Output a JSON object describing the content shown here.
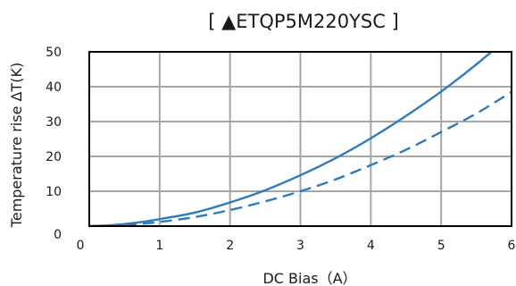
{
  "chart_data": {
    "type": "line",
    "title": "[ ▲ETQP5M220YSC ]",
    "xlabel": "DC Bias（A）",
    "ylabel": "Temperature rise ΔT(K)",
    "xlim": [
      0,
      6
    ],
    "ylim": [
      0,
      50
    ],
    "x_ticks": [
      "0",
      "1",
      "2",
      "3",
      "4",
      "5",
      "6"
    ],
    "y_ticks": [
      "0",
      "10",
      "20",
      "30",
      "40",
      "50"
    ],
    "grid": true,
    "legend": "none",
    "series": [
      {
        "style": "solid",
        "color": "#2d7bbf",
        "x": [
          0,
          0.25,
          0.5,
          0.75,
          1,
          1.5,
          2,
          2.5,
          3,
          3.5,
          4,
          4.5,
          5,
          5.5,
          6
        ],
        "y": [
          0,
          0.2,
          0.6,
          1.2,
          2,
          3.9,
          6.8,
          10.3,
          14.6,
          19.5,
          25.2,
          31.6,
          38.6,
          46.4,
          55
        ]
      },
      {
        "style": "dashed",
        "color": "#2d7bbf",
        "x": [
          0,
          0.25,
          0.5,
          0.75,
          1,
          1.5,
          2,
          2.5,
          3,
          3.5,
          4,
          4.5,
          5,
          5.5,
          6
        ],
        "y": [
          0,
          0.1,
          0.3,
          0.7,
          1.2,
          2.6,
          4.6,
          7.1,
          10,
          13.4,
          17.5,
          21.9,
          27,
          32.3,
          38.5
        ]
      }
    ]
  }
}
